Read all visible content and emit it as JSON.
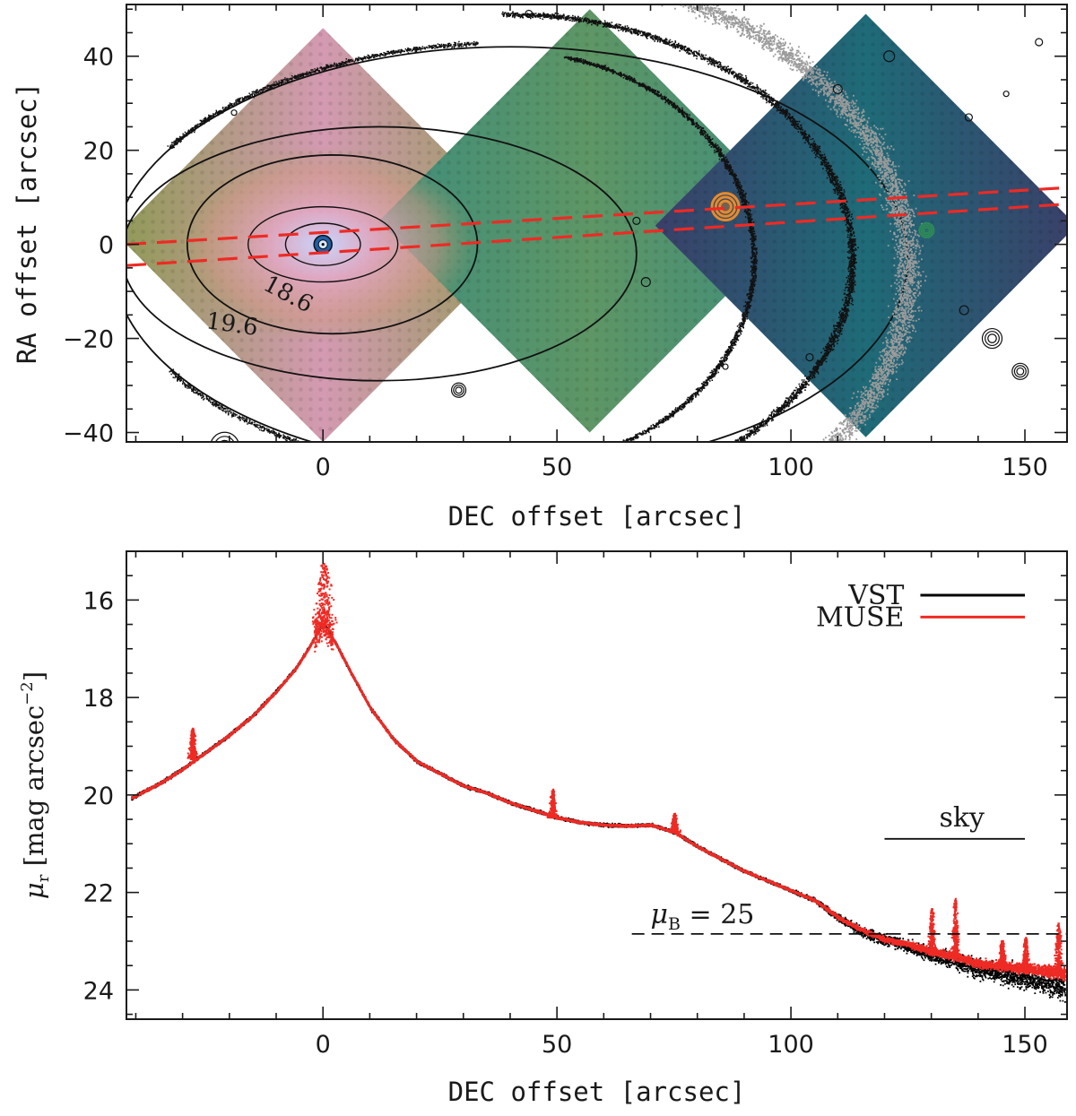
{
  "chart_data": [
    {
      "type": "image-map",
      "title": "",
      "xlabel": "DEC offset [arcsec]",
      "ylabel": "RA offset [arcsec]",
      "xlim": [
        -42,
        159
      ],
      "ylim": [
        -42,
        51
      ],
      "xticks": [
        0,
        50,
        100,
        150
      ],
      "yticks": [
        -40,
        -20,
        0,
        20,
        40
      ],
      "contour_labels": [
        "18.6",
        "19.6"
      ],
      "fields": [
        {
          "name": "field-1",
          "center": [
            0,
            2
          ],
          "half_diag": 44,
          "color_outer": "#8f9a55",
          "color_inner": "#d49ab2"
        },
        {
          "name": "field-2",
          "center": [
            57,
            5
          ],
          "half_diag": 45,
          "color_outer": "#3e8d7c",
          "color_inner": "#5e9665"
        },
        {
          "name": "field-3",
          "center": [
            116,
            4
          ],
          "half_diag": 45,
          "color_outer": "#3a3f69",
          "color_inner": "#1f6b78"
        }
      ],
      "slit_lines": [
        {
          "x": [
            -42,
            158
          ],
          "y": [
            0,
            12
          ]
        },
        {
          "x": [
            -42,
            158
          ],
          "y": [
            -4.5,
            8.5
          ]
        }
      ],
      "contour_ellipses": [
        {
          "cx": 0,
          "cy": 0,
          "rx": 8,
          "ry": 4.5
        },
        {
          "cx": 0,
          "cy": 0,
          "rx": 16,
          "ry": 8
        },
        {
          "cx": 2,
          "cy": 0,
          "rx": 31,
          "ry": 19
        },
        {
          "cx": 12,
          "cy": -2,
          "rx": 55,
          "ry": 27
        },
        {
          "cx": 40,
          "cy": -3,
          "rx": 85,
          "ry": 45
        }
      ]
    },
    {
      "type": "scatter",
      "title": "",
      "xlabel": "DEC offset [arcsec]",
      "ylabel": "μr [mag arcsec⁻²]",
      "ylabel_parts": {
        "symbol": "μ",
        "sub": "r",
        "text": " [mag arcsec",
        "sup": "−2",
        "close": "]"
      },
      "xlim": [
        -42,
        159
      ],
      "ylim": [
        24.6,
        15
      ],
      "xticks": [
        0,
        50,
        100,
        150
      ],
      "yticks": [
        16,
        18,
        20,
        22,
        24
      ],
      "legend": {
        "position": "top-right",
        "entries": [
          {
            "label": "VST",
            "color": "#000000"
          },
          {
            "label": "MUSE",
            "color": "#ee2a24"
          }
        ]
      },
      "annotations": {
        "sky_label": "sky",
        "sky_range": [
          120,
          150
        ],
        "sky_level": 20.9,
        "mu_b_label": "μB = 25",
        "mu_b_symbol": "μ",
        "mu_b_sub": "B",
        "mu_b_value": " = 25",
        "mu_b_level": 22.85
      },
      "series": [
        {
          "name": "VST",
          "color": "#000000",
          "x": [
            -41,
            -35,
            -30,
            -25,
            -20,
            -15,
            -10,
            -6,
            -3,
            -1,
            0,
            1,
            3,
            6,
            10,
            15,
            20,
            25,
            30,
            35,
            40,
            45,
            50,
            55,
            60,
            65,
            70,
            75,
            80,
            85,
            90,
            95,
            100,
            105,
            110,
            115,
            120,
            125,
            130,
            135,
            140,
            145,
            150,
            155,
            158
          ],
          "y": [
            20.05,
            19.75,
            19.45,
            19.1,
            18.75,
            18.35,
            17.85,
            17.4,
            16.95,
            16.6,
            16.5,
            16.6,
            16.95,
            17.5,
            18.2,
            18.85,
            19.3,
            19.55,
            19.8,
            19.95,
            20.15,
            20.3,
            20.45,
            20.55,
            20.6,
            20.62,
            20.6,
            20.75,
            21.05,
            21.3,
            21.55,
            21.75,
            21.95,
            22.15,
            22.5,
            22.8,
            22.95,
            23.1,
            23.25,
            23.4,
            23.55,
            23.65,
            23.75,
            23.85,
            23.95
          ]
        },
        {
          "name": "MUSE",
          "color": "#ee2a24",
          "x": [
            -41,
            -35,
            -30,
            -25,
            -20,
            -15,
            -10,
            -6,
            -3,
            -1,
            0,
            1,
            3,
            6,
            10,
            15,
            20,
            25,
            30,
            35,
            40,
            45,
            50,
            55,
            60,
            65,
            70,
            75,
            80,
            85,
            90,
            95,
            100,
            105,
            110,
            115,
            120,
            125,
            130,
            135,
            140,
            145,
            150,
            155,
            158
          ],
          "y": [
            20.05,
            19.75,
            19.45,
            19.1,
            18.75,
            18.35,
            17.85,
            17.4,
            16.95,
            16.6,
            16.45,
            16.6,
            16.95,
            17.5,
            18.2,
            18.85,
            19.3,
            19.55,
            19.8,
            19.95,
            20.15,
            20.3,
            20.45,
            20.55,
            20.6,
            20.62,
            20.6,
            20.75,
            21.05,
            21.3,
            21.55,
            21.75,
            21.95,
            22.15,
            22.5,
            22.75,
            22.95,
            23.05,
            23.2,
            23.3,
            23.45,
            23.5,
            23.55,
            23.6,
            23.65
          ]
        }
      ],
      "spikes": [
        {
          "x": -28,
          "peak": 18.6,
          "base": 19.25
        },
        {
          "x": 0,
          "peak": 15.2,
          "base": 16.5
        },
        {
          "x": 49,
          "peak": 19.85,
          "base": 20.45
        },
        {
          "x": 75,
          "peak": 20.35,
          "base": 20.75
        },
        {
          "x": 130,
          "peak": 22.3,
          "base": 23.2
        },
        {
          "x": 135,
          "peak": 22.1,
          "base": 23.3
        },
        {
          "x": 145,
          "peak": 22.95,
          "base": 23.5
        },
        {
          "x": 150,
          "peak": 22.9,
          "base": 23.55
        },
        {
          "x": 157,
          "peak": 22.6,
          "base": 23.6
        }
      ]
    }
  ]
}
